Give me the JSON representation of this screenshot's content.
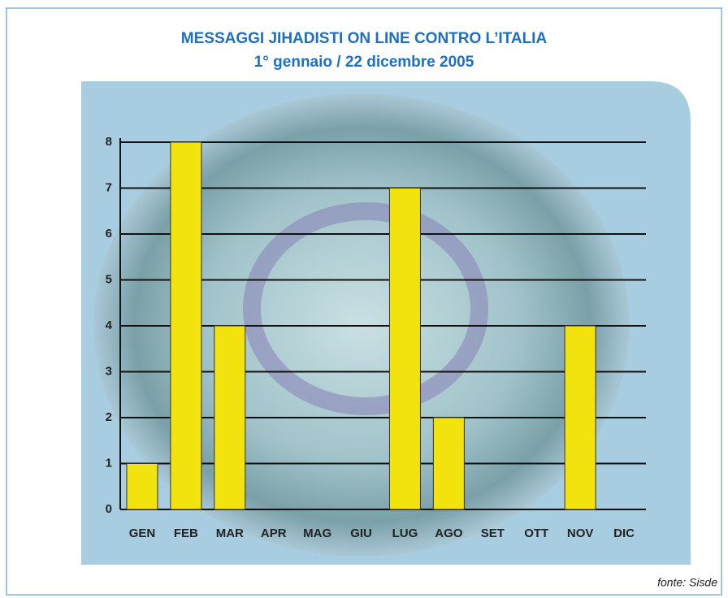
{
  "chart_data": {
    "type": "bar",
    "title": "MESSAGGI JIHADISTI ON LINE CONTRO L’ITALIA",
    "subtitle": "1° gennaio / 22 dicembre 2005",
    "categories": [
      "GEN",
      "FEB",
      "MAR",
      "APR",
      "MAG",
      "GIU",
      "LUG",
      "AGO",
      "SET",
      "OTT",
      "NOV",
      "DIC"
    ],
    "values": [
      1,
      8,
      4,
      0,
      0,
      0,
      7,
      2,
      0,
      0,
      4,
      0
    ],
    "color": "#f2e20e",
    "ylim": [
      0,
      8
    ],
    "yticks": [
      0,
      1,
      2,
      3,
      4,
      5,
      6,
      7,
      8
    ],
    "grid": true,
    "source": "fonte: Sisde"
  }
}
